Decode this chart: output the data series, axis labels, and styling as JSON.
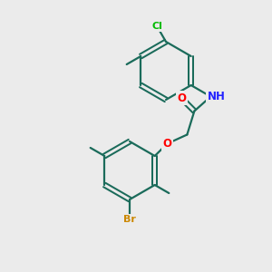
{
  "background_color": "#ebebeb",
  "bond_color": "#1a6b5a",
  "bond_color_dark": "#000000",
  "atom_colors": {
    "Cl": "#00bb00",
    "Br": "#cc8800",
    "O": "#ff0000",
    "N": "#2222ff",
    "H": "#000000",
    "C": "#1a6b5a"
  },
  "lw": 1.6,
  "ring_r": 32,
  "off": 2.5
}
